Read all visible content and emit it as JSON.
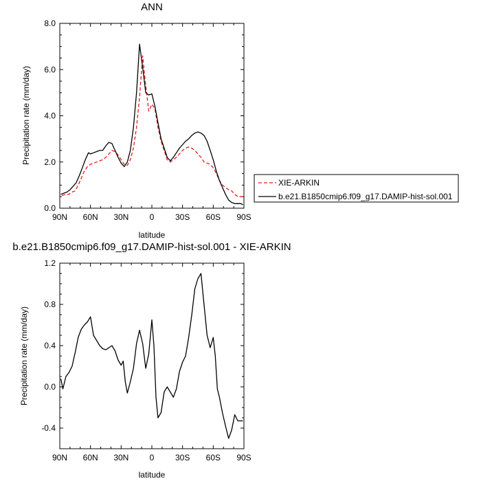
{
  "chart_data": [
    {
      "type": "line",
      "title": "ANN",
      "xlabel": "latitude",
      "ylabel": "Precipitation rate (mm/day)",
      "xlim": [
        90,
        -90
      ],
      "ylim": [
        0,
        8
      ],
      "xticks": [
        90,
        60,
        30,
        0,
        -30,
        -60,
        -90
      ],
      "xtick_labels": [
        "90N",
        "60N",
        "30N",
        "0",
        "30S",
        "60S",
        "90S"
      ],
      "yticks": [
        0,
        2,
        4,
        6,
        8
      ],
      "ytick_labels": [
        "0.0",
        "2.0",
        "4.0",
        "6.0",
        "8.0"
      ],
      "grid": false,
      "legend": "right",
      "series": [
        {
          "name": "XIE-ARKIN",
          "color": "#e8191a",
          "dash": "dashed",
          "x": [
            88,
            84,
            81,
            78,
            75,
            72,
            69,
            66,
            63,
            60,
            57,
            54,
            51,
            48,
            45,
            42,
            39,
            36,
            33,
            30,
            27,
            24,
            21,
            18,
            15,
            12,
            9,
            6,
            3,
            0,
            -3,
            -6,
            -9,
            -12,
            -15,
            -18,
            -21,
            -24,
            -27,
            -30,
            -33,
            -36,
            -39,
            -42,
            -45,
            -48,
            -51,
            -54,
            -57,
            -60,
            -63,
            -66,
            -69,
            -72,
            -75,
            -78,
            -81,
            -84,
            -87,
            -89
          ],
          "y": [
            0.55,
            0.6,
            0.6,
            0.7,
            0.75,
            1.0,
            1.3,
            1.6,
            1.8,
            1.9,
            1.95,
            2.0,
            2.05,
            2.1,
            2.2,
            2.35,
            2.5,
            2.45,
            2.3,
            2.1,
            1.9,
            1.85,
            2.1,
            2.6,
            3.5,
            4.8,
            6.6,
            5.3,
            4.2,
            4.5,
            4.3,
            3.5,
            2.9,
            2.5,
            2.1,
            2.0,
            2.1,
            2.2,
            2.35,
            2.5,
            2.6,
            2.65,
            2.6,
            2.5,
            2.35,
            2.2,
            2.0,
            1.95,
            1.9,
            1.75,
            1.5,
            1.2,
            1.0,
            0.9,
            0.8,
            0.75,
            0.6,
            0.5,
            0.5,
            0.5
          ]
        },
        {
          "name": "b.e21.B1850cmip6.f09_g17.DAMIP-hist-sol.001",
          "color": "#000000",
          "dash": "solid",
          "x": [
            89,
            86,
            83,
            80,
            77,
            74,
            71,
            68,
            65,
            62,
            60,
            57,
            54,
            51,
            48,
            45,
            42,
            39,
            36,
            33,
            30,
            27,
            24,
            21,
            18,
            15,
            12,
            9,
            6,
            3,
            0,
            -3,
            -6,
            -9,
            -12,
            -15,
            -18,
            -21,
            -24,
            -27,
            -30,
            -33,
            -36,
            -39,
            -42,
            -45,
            -48,
            -51,
            -54,
            -57,
            -60,
            -63,
            -66,
            -69,
            -72,
            -75,
            -78,
            -81,
            -84,
            -87,
            -89
          ],
          "y": [
            0.6,
            0.65,
            0.7,
            0.8,
            0.95,
            1.1,
            1.4,
            1.75,
            2.1,
            2.4,
            2.35,
            2.4,
            2.45,
            2.5,
            2.5,
            2.7,
            2.85,
            2.8,
            2.5,
            2.2,
            1.95,
            1.8,
            2.0,
            2.5,
            3.5,
            5.0,
            7.1,
            6.1,
            5.0,
            4.9,
            4.95,
            4.4,
            3.7,
            3.0,
            2.6,
            2.2,
            2.05,
            2.2,
            2.4,
            2.6,
            2.75,
            2.9,
            3.0,
            3.15,
            3.25,
            3.3,
            3.25,
            3.15,
            2.9,
            2.5,
            2.1,
            1.6,
            1.2,
            0.9,
            0.6,
            0.35,
            0.25,
            0.2,
            0.2,
            0.2,
            0.15
          ]
        }
      ]
    },
    {
      "type": "line",
      "title": "b.e21.B1850cmip6.f09_g17.DAMIP-hist-sol.001 - XIE-ARKIN",
      "xlabel": "latitude",
      "ylabel": "Precipitation rate (mm/day)",
      "xlim": [
        90,
        -90
      ],
      "ylim": [
        -0.6,
        1.2
      ],
      "xticks": [
        90,
        60,
        30,
        0,
        -30,
        -60,
        -90
      ],
      "xtick_labels": [
        "90N",
        "60N",
        "30N",
        "0",
        "30S",
        "60S",
        "90S"
      ],
      "yticks": [
        -0.4,
        0,
        0.4,
        0.8,
        1.2
      ],
      "ytick_labels": [
        "-0.4",
        "0.0",
        "0.4",
        "0.8",
        "1.2"
      ],
      "grid": false,
      "series": [
        {
          "color": "#000000",
          "dash": "solid",
          "x": [
            89,
            87,
            84,
            81,
            78,
            75,
            72,
            69,
            66,
            63,
            60,
            57,
            54,
            51,
            48,
            45,
            42,
            39,
            36,
            33,
            30,
            28,
            26,
            24,
            21,
            18,
            15,
            12,
            9,
            6,
            3,
            0,
            -2,
            -4,
            -6,
            -9,
            -12,
            -15,
            -18,
            -21,
            -24,
            -27,
            -30,
            -33,
            -36,
            -39,
            -42,
            -45,
            -48,
            -51,
            -54,
            -57,
            -60,
            -62,
            -64,
            -66,
            -69,
            -72,
            -75,
            -78,
            -81,
            -84,
            -87,
            -89
          ],
          "y": [
            0.08,
            -0.02,
            0.1,
            0.14,
            0.2,
            0.33,
            0.48,
            0.56,
            0.6,
            0.63,
            0.68,
            0.5,
            0.45,
            0.4,
            0.37,
            0.36,
            0.38,
            0.4,
            0.35,
            0.26,
            0.21,
            0.25,
            0.05,
            -0.06,
            0.05,
            0.18,
            0.42,
            0.55,
            0.42,
            0.18,
            0.32,
            0.65,
            0.4,
            -0.1,
            -0.3,
            -0.25,
            -0.05,
            0.0,
            -0.05,
            -0.1,
            -0.02,
            0.15,
            0.24,
            0.3,
            0.48,
            0.7,
            0.95,
            1.05,
            1.1,
            0.8,
            0.5,
            0.38,
            0.48,
            0.3,
            -0.02,
            -0.1,
            -0.25,
            -0.38,
            -0.5,
            -0.42,
            -0.27,
            -0.33,
            -0.33,
            -0.33
          ]
        }
      ]
    }
  ]
}
